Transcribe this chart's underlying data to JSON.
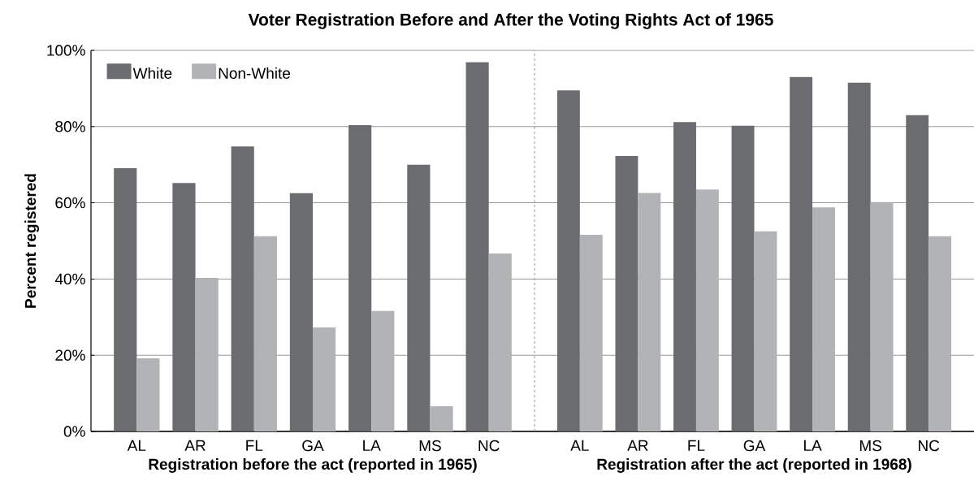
{
  "chart_data": [
    {
      "type": "bar",
      "title": "Voter Registration Before and After the Voting Rights Act of 1965",
      "xlabel": "Registration before the act (reported in 1965)",
      "ylabel": "Percent registered",
      "categories": [
        "AL",
        "AR",
        "FL",
        "GA",
        "LA",
        "MS",
        "NC"
      ],
      "series": [
        {
          "name": "White",
          "color": "#6b6c70",
          "values": [
            69.1,
            65.2,
            74.8,
            62.5,
            80.4,
            70.0,
            96.9
          ]
        },
        {
          "name": "Non-White",
          "color": "#b2b3b6",
          "values": [
            19.2,
            40.3,
            51.2,
            27.3,
            31.6,
            6.6,
            46.7
          ]
        }
      ],
      "ylim": [
        0,
        100
      ],
      "yticks": [
        {
          "value": 0,
          "label": "0%"
        },
        {
          "value": 20,
          "label": "20%"
        },
        {
          "value": 40,
          "label": "40%"
        },
        {
          "value": 60,
          "label": "60%"
        },
        {
          "value": 80,
          "label": "80%"
        },
        {
          "value": 100,
          "label": "100%"
        }
      ],
      "grid": "y",
      "legend": "top left"
    },
    {
      "type": "bar",
      "xlabel": "Registration after the act (reported in 1968)",
      "categories": [
        "AL",
        "AR",
        "FL",
        "GA",
        "LA",
        "MS",
        "NC"
      ],
      "series": [
        {
          "color": "#6b6c70",
          "values": [
            89.5,
            72.3,
            81.2,
            80.2,
            93.0,
            91.5,
            83.0
          ]
        },
        {
          "color": "#b2b3b6",
          "values": [
            51.6,
            62.6,
            63.5,
            52.5,
            58.8,
            60.0,
            51.2
          ]
        }
      ],
      "ylim": [
        0,
        100
      ],
      "yticks": [
        0,
        20,
        40,
        60,
        80,
        100
      ],
      "grid": "y",
      "tick_labels": "x"
    }
  ]
}
